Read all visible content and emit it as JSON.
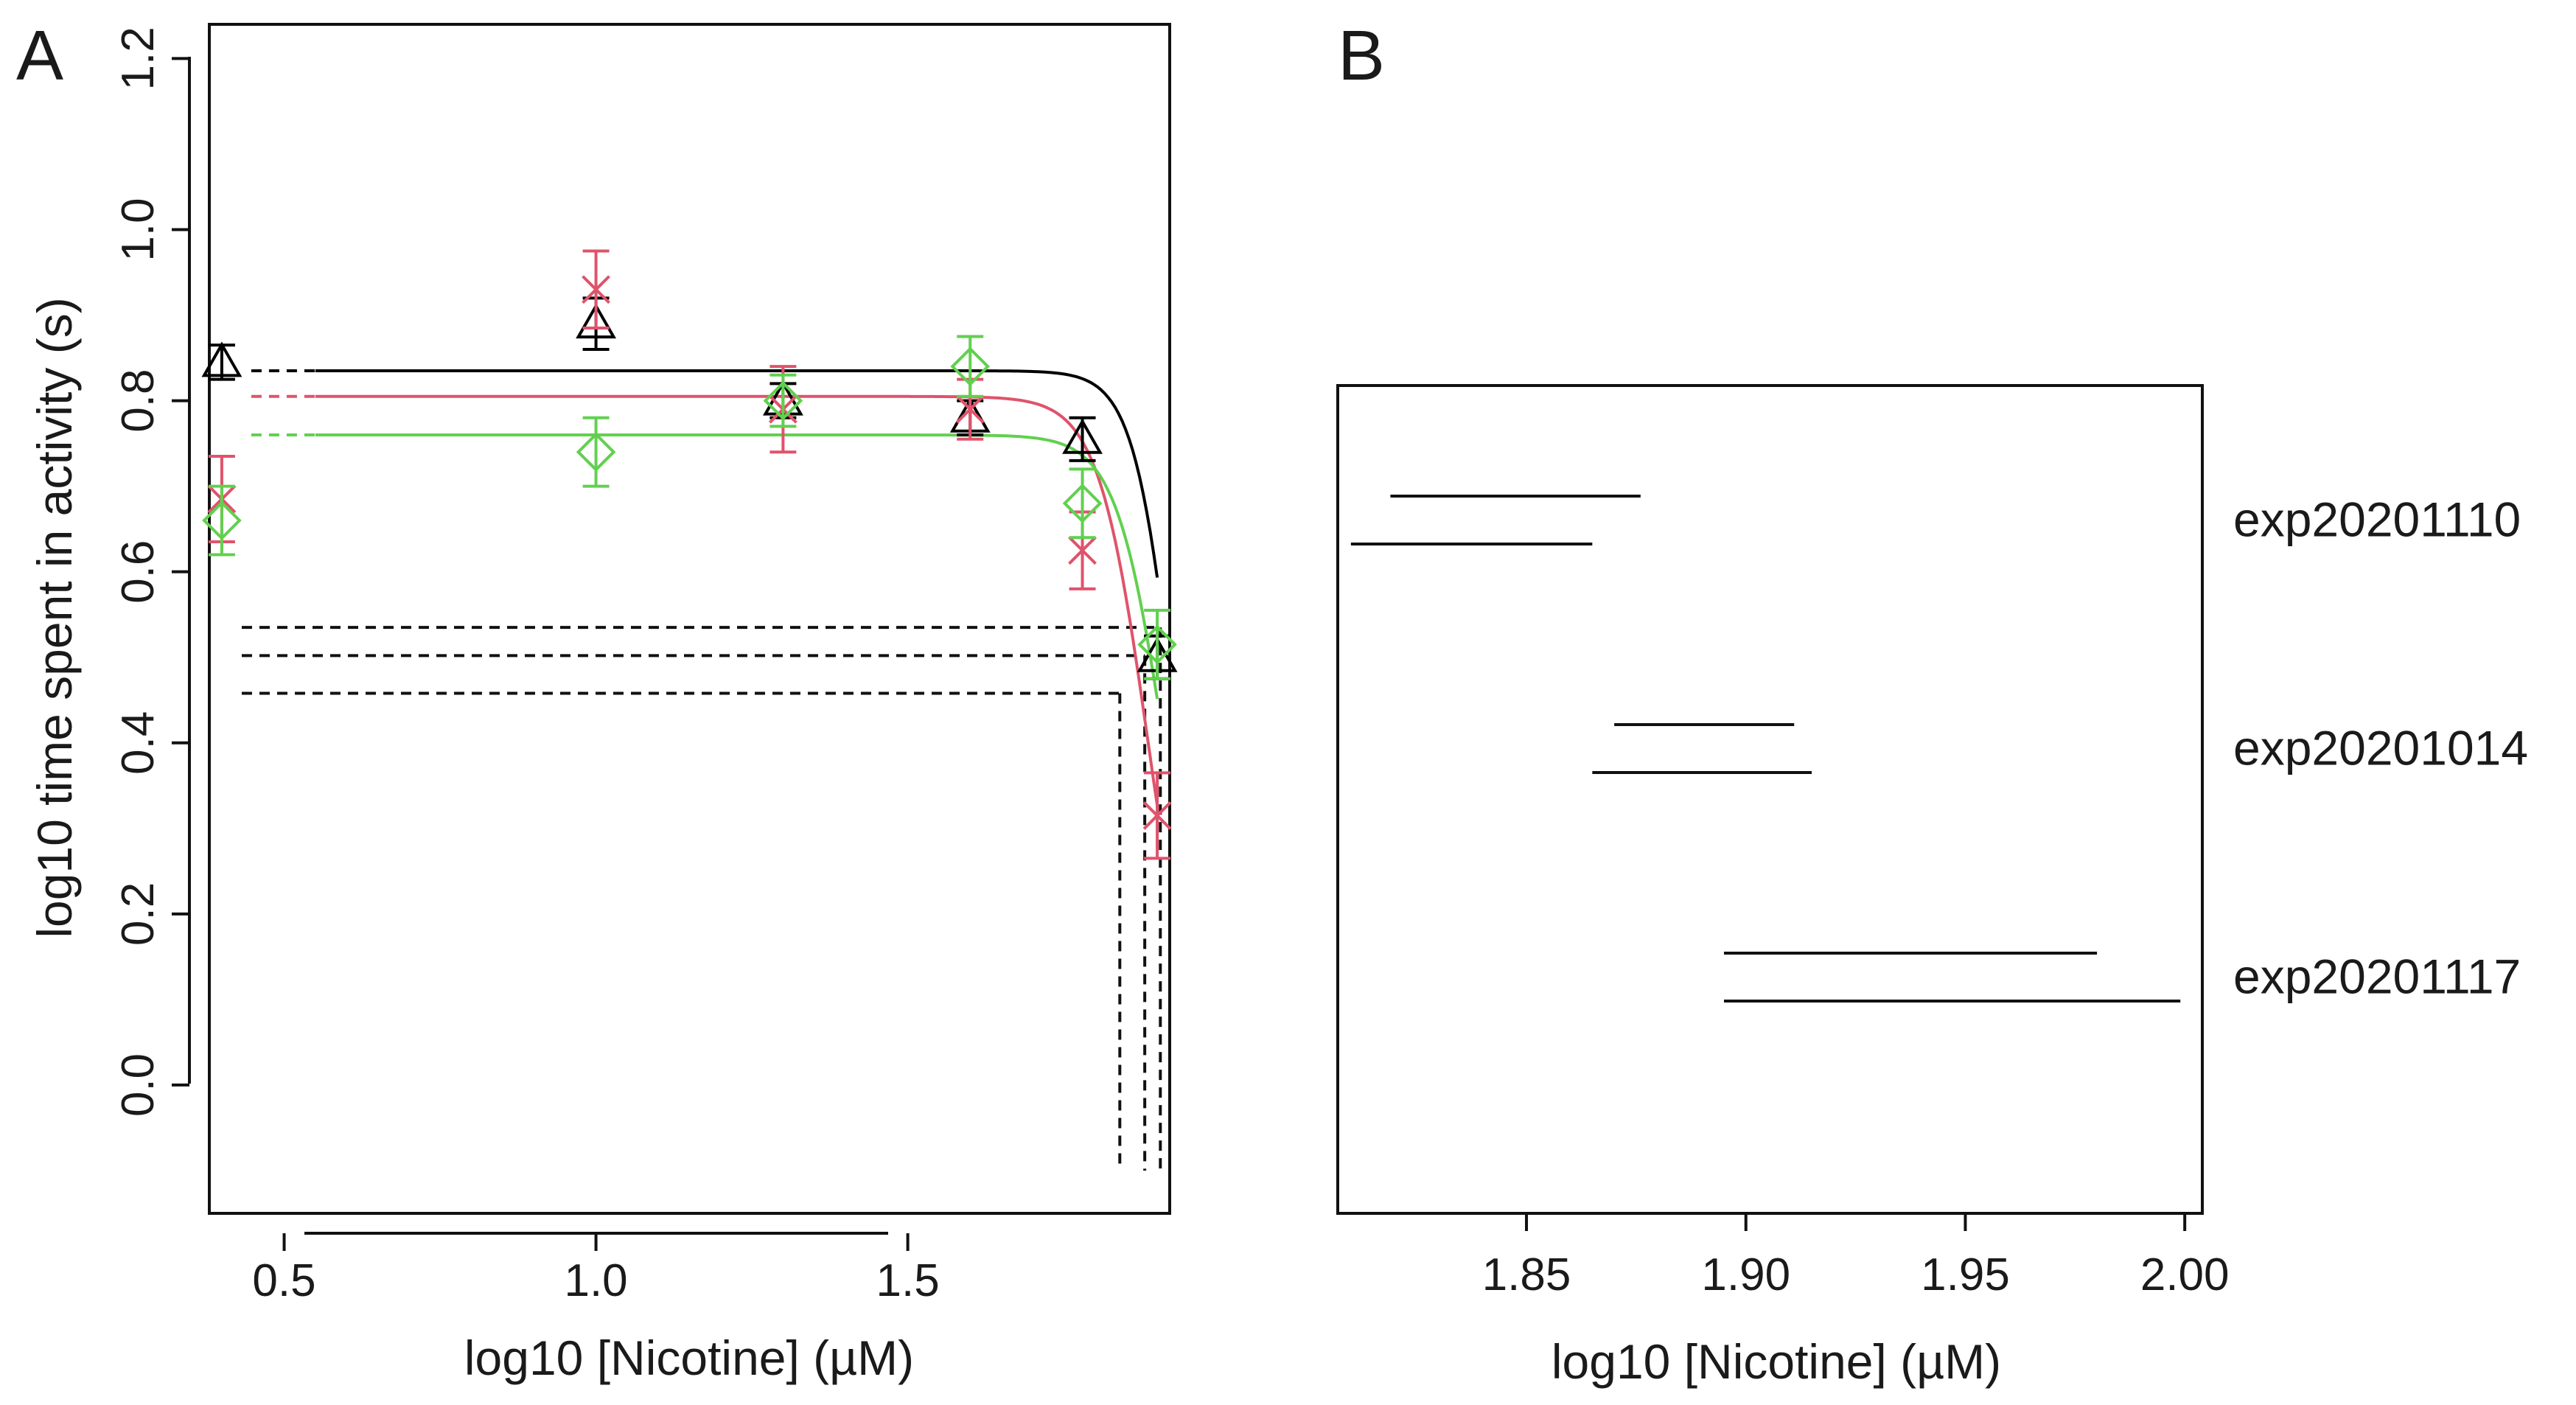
{
  "chart_data": [
    {
      "panel_label": "A",
      "type": "line",
      "xlabel": "log10 [Nicotine] (µM)",
      "ylabel": "log10  time spent in activity (s)",
      "xlim": [
        0.38,
        1.92
      ],
      "ylim": [
        -0.15,
        1.24
      ],
      "x_ticks": [
        0.5,
        1.0,
        1.5
      ],
      "x_tick_labels": [
        "0.5",
        "1.0",
        "1.5"
      ],
      "y_ticks": [
        0.0,
        0.2,
        0.4,
        0.6,
        0.8,
        1.0,
        1.2
      ],
      "y_tick_labels": [
        "0.0",
        "0.2",
        "0.4",
        "0.6",
        "0.8",
        "1.0",
        "1.2"
      ],
      "grid": false,
      "series": [
        {
          "name": "black",
          "color": "#000000",
          "marker": "triangle",
          "x": [
            0.4,
            1.0,
            1.3,
            1.6,
            1.78,
            1.9
          ],
          "y": [
            0.845,
            0.89,
            0.8,
            0.78,
            0.755,
            0.5
          ],
          "err": [
            0.02,
            0.03,
            0.02,
            0.02,
            0.025,
            0.025
          ],
          "fit": {
            "top": 0.835,
            "ic50": 1.93,
            "hill": 13
          },
          "fit_x_start": 0.55,
          "dashed_top_from": 0.4,
          "half_level": 0.535,
          "intercept_x": 1.905
        },
        {
          "name": "red",
          "color": "#df536b",
          "marker": "x",
          "x": [
            0.4,
            1.0,
            1.3,
            1.6,
            1.78,
            1.9
          ],
          "y": [
            0.685,
            0.93,
            0.79,
            0.79,
            0.625,
            0.315
          ],
          "err": [
            0.05,
            0.045,
            0.05,
            0.035,
            0.045,
            0.05
          ],
          "fit": {
            "top": 0.805,
            "ic50": 1.885,
            "hill": 11
          },
          "fit_x_start": 0.55,
          "dashed_top_from": 0.4,
          "half_level": 0.458,
          "intercept_x": 1.84
        },
        {
          "name": "green",
          "color": "#61d04f",
          "marker": "diamond",
          "x": [
            0.4,
            1.0,
            1.3,
            1.6,
            1.78,
            1.9
          ],
          "y": [
            0.66,
            0.74,
            0.8,
            0.84,
            0.68,
            0.515
          ],
          "err": [
            0.04,
            0.04,
            0.03,
            0.035,
            0.04,
            0.04
          ],
          "fit": {
            "top": 0.76,
            "ic50": 1.915,
            "hill": 11
          },
          "fit_x_start": 0.55,
          "dashed_top_from": 0.4,
          "half_level": 0.502,
          "intercept_x": 1.88
        }
      ],
      "dashed_bottom_y": -0.1
    },
    {
      "panel_label": "B",
      "type": "interval",
      "xlabel": "log10  [Nicotine] (µM)",
      "xlim": [
        1.807,
        2.004
      ],
      "x_ticks": [
        1.85,
        1.9,
        1.95,
        2.0
      ],
      "x_tick_labels": [
        "1.85",
        "1.90",
        "1.95",
        "2.00"
      ],
      "groups": [
        {
          "label": "exp20201110",
          "intervals": [
            [
              1.819,
              1.876
            ],
            [
              1.81,
              1.865
            ]
          ]
        },
        {
          "label": "exp20201014",
          "intervals": [
            [
              1.87,
              1.911
            ],
            [
              1.865,
              1.915
            ]
          ]
        },
        {
          "label": "exp20201117",
          "intervals": [
            [
              1.895,
              1.98
            ],
            [
              1.895,
              1.999
            ]
          ]
        }
      ]
    }
  ]
}
